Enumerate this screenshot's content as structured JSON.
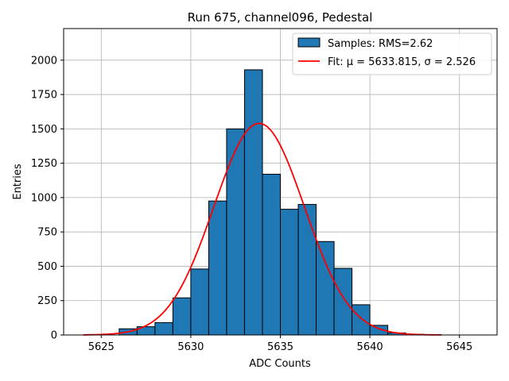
{
  "chart_data": {
    "type": "bar",
    "title": "Run 675, channel096, Pedestal",
    "xlabel": "ADC Counts",
    "ylabel": "Entries",
    "xlim": [
      5622.9,
      5647.1
    ],
    "ylim": [
      0,
      2230
    ],
    "xticks": [
      5625,
      5630,
      5635,
      5640,
      5645
    ],
    "yticks": [
      0,
      250,
      500,
      750,
      1000,
      1250,
      1500,
      1750,
      2000
    ],
    "grid": true,
    "bin_width": 1,
    "bins": [
      5626,
      5627,
      5628,
      5629,
      5630,
      5631,
      5632,
      5633,
      5634,
      5635,
      5636,
      5637,
      5638,
      5639,
      5640,
      5641,
      5642
    ],
    "values": [
      45,
      60,
      90,
      270,
      480,
      975,
      1500,
      1930,
      1170,
      915,
      950,
      680,
      485,
      220,
      70,
      15,
      5
    ],
    "bar_color": "#1f77b4",
    "bar_edge_color": "#000000",
    "fit": {
      "mu": 5633.815,
      "sigma": 2.526,
      "amplitude": 1540,
      "x_range": [
        5624,
        5644
      ],
      "color": "#ff0000"
    },
    "legend": {
      "position": "top-right",
      "entries": [
        {
          "label": "Samples: RMS=2.62",
          "kind": "patch"
        },
        {
          "label": "Fit: μ = 5633.815, σ = 2.526",
          "kind": "line"
        }
      ]
    }
  }
}
